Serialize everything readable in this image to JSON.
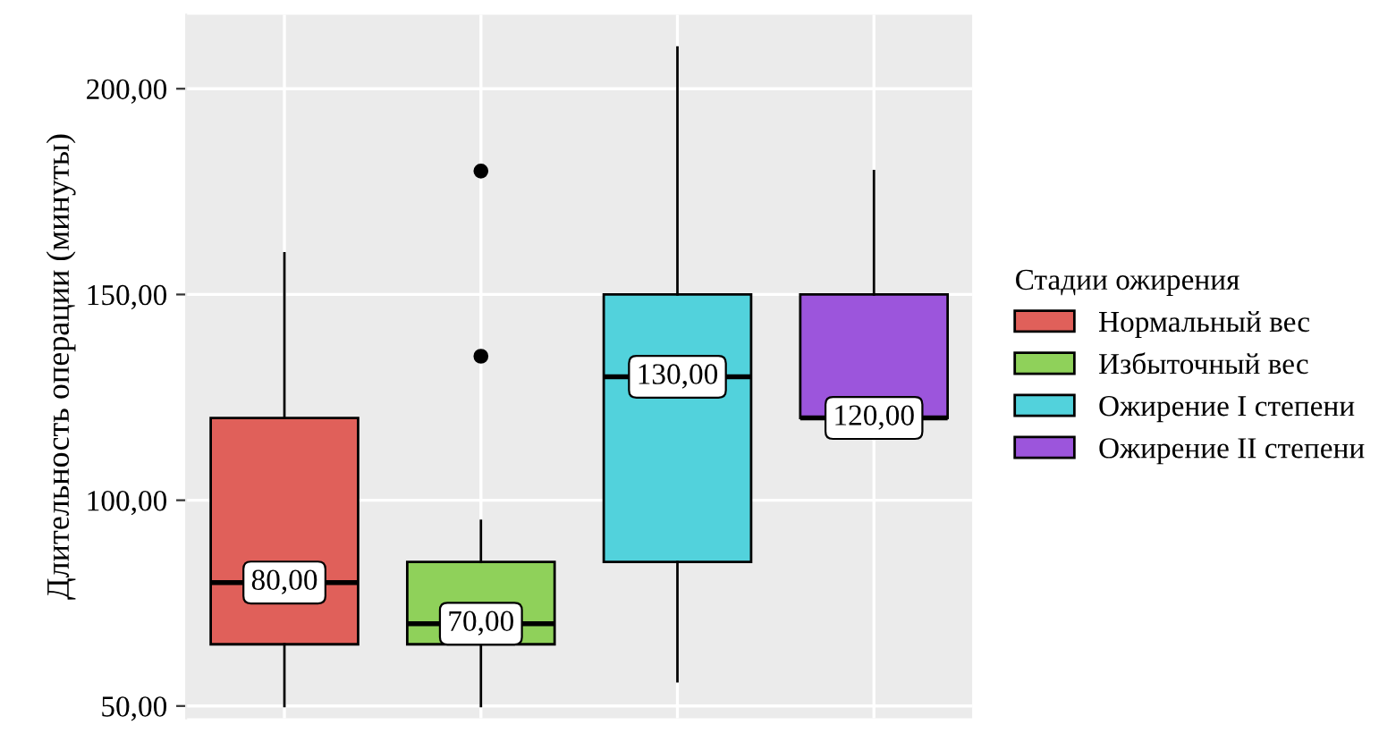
{
  "chart_data": {
    "type": "box",
    "ylabel": "Длительность операции (минуты)",
    "legend_title": "Стадии ожирения",
    "legend": "right",
    "categories": [
      null,
      null,
      null,
      null
    ],
    "series": [
      {
        "name": "Нормальный вес",
        "color": "#e0605a",
        "boxes": [
          {
            "low": 50,
            "q1": 65,
            "median": 80,
            "q3": 120,
            "high": 160
          },
          null,
          null,
          null
        ],
        "value_labels": [
          "80,00",
          null,
          null,
          null
        ]
      },
      {
        "name": "Избыточный вес",
        "color": "#8fd15a",
        "boxes": [
          null,
          {
            "low": 50,
            "q1": 65,
            "median": 70,
            "q3": 85,
            "high": 95,
            "outliers": [
              135,
              180
            ]
          },
          null,
          null
        ],
        "value_labels": [
          null,
          "70,00",
          null,
          null
        ]
      },
      {
        "name": "Ожирение I степени",
        "color": "#52d2dc",
        "boxes": [
          null,
          null,
          {
            "low": 56,
            "q1": 85,
            "median": 130,
            "q3": 150,
            "high": 210
          },
          null
        ],
        "value_labels": [
          null,
          null,
          "130,00",
          null
        ]
      },
      {
        "name": "Ожирение II степени",
        "color": "#9c55dc",
        "boxes": [
          null,
          null,
          null,
          {
            "low": 120,
            "q1": 120,
            "median": 120,
            "q3": 150,
            "high": 180
          }
        ],
        "value_labels": [
          null,
          null,
          null,
          "120,00"
        ]
      }
    ],
    "ylim": [
      47,
      218
    ],
    "yticks": [
      {
        "value": 50,
        "label": "50,00"
      },
      {
        "value": 100,
        "label": "100,00"
      },
      {
        "value": 150,
        "label": "150,00"
      },
      {
        "value": 200,
        "label": "200,00"
      }
    ],
    "grid": true
  }
}
